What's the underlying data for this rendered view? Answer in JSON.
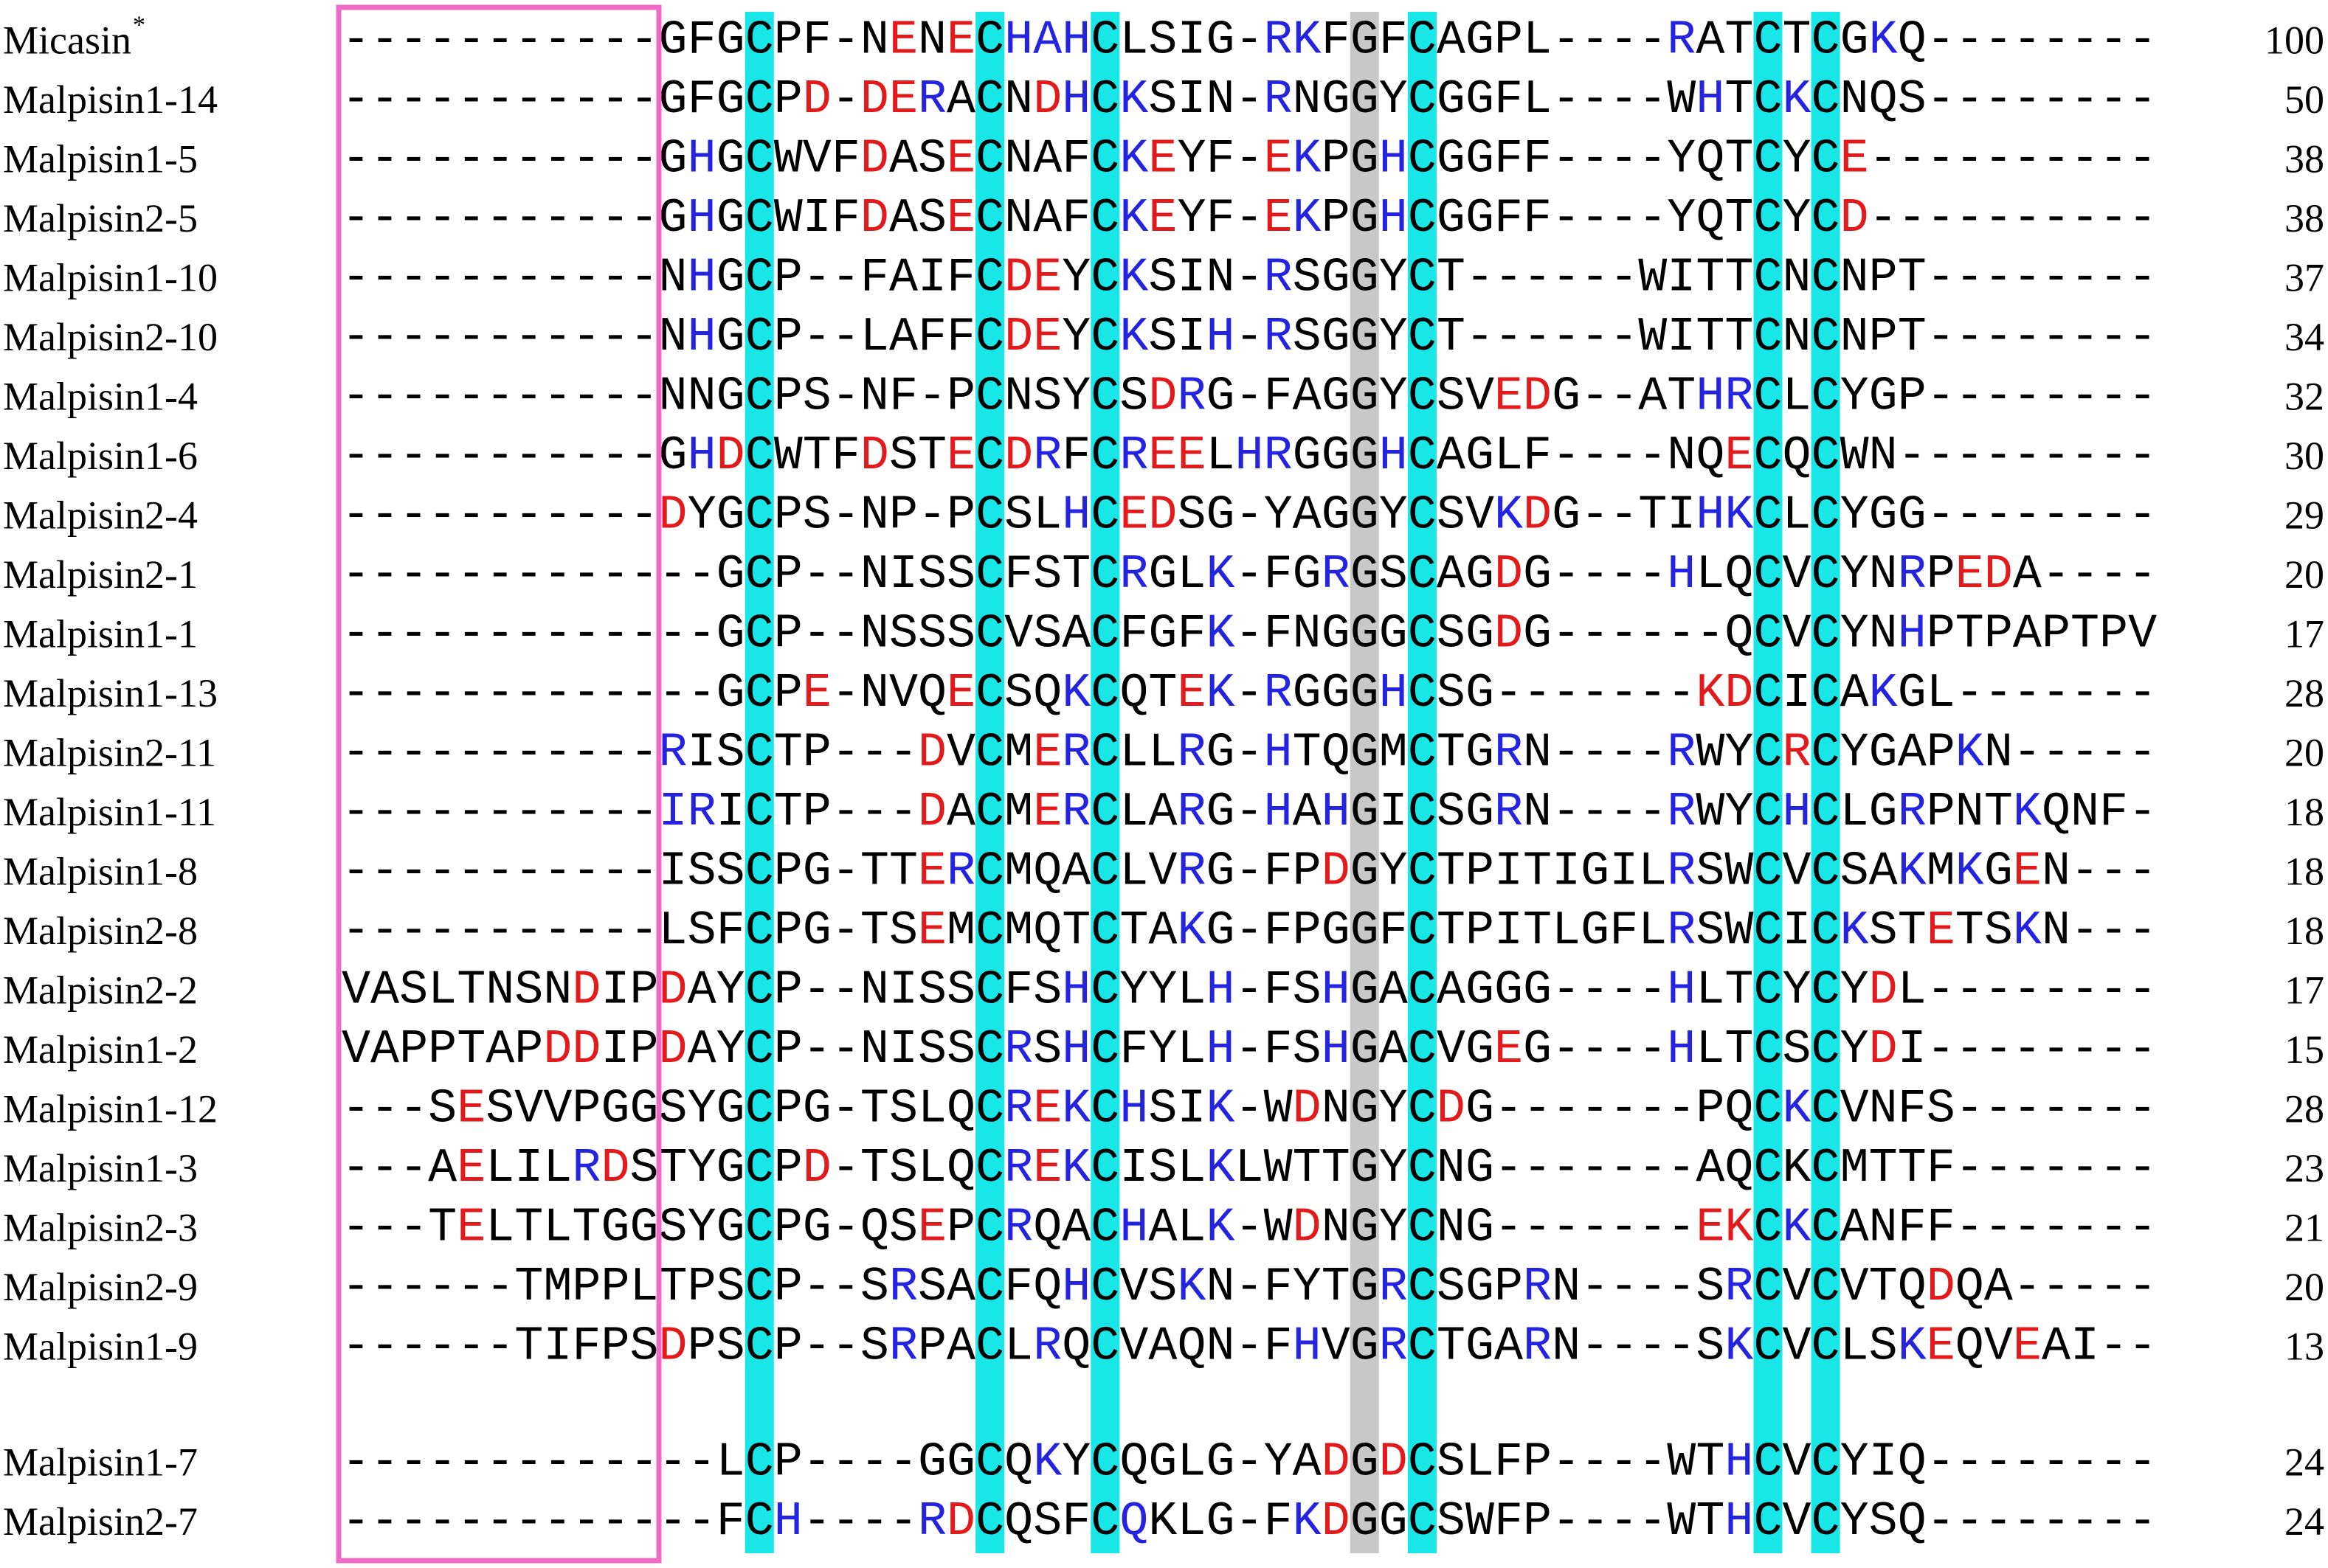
{
  "alignment": {
    "palette": {
      "red": "#e31a1c",
      "blue": "#2424e0"
    },
    "groups": [
      {
        "rows": [
          {
            "name": "Micasin",
            "note": "*",
            "box": "-----------",
            "sequence": "GFGCPF-NENECHAHCLSIG-RKFGFCAGPL----RATCTCGKQ--------",
            "length": 100,
            "red": [
              19,
              21
            ],
            "blue": [
              23,
              24,
              25,
              32,
              33,
              46,
              53
            ]
          },
          {
            "name": "Malpisin1-14",
            "box": "-----------",
            "sequence": "GFGCPD-DERACNDHCKSIN-RNGGYCGGFL----WHTCKCNQS--------",
            "length": 50,
            "red": [
              16,
              18,
              19,
              24
            ],
            "blue": [
              20,
              25,
              27,
              32,
              47,
              50
            ]
          },
          {
            "name": "Malpisin1-5",
            "box": "-----------",
            "sequence": "GHGCWVFDASECNAFCKEYF-EKPGHCGGFF----YQTCYCE----------",
            "length": 38,
            "red": [
              18,
              21,
              28,
              32,
              52
            ],
            "blue": [
              12,
              27,
              33,
              36
            ]
          },
          {
            "name": "Malpisin2-5",
            "box": "-----------",
            "sequence": "GHGCWIFDASECNAFCKEYF-EKPGHCGGFF----YQTCYCD----------",
            "length": 38,
            "red": [
              18,
              21,
              28,
              32,
              52
            ],
            "blue": [
              12,
              27,
              33,
              36
            ]
          },
          {
            "name": "Malpisin1-10",
            "box": "-----------",
            "sequence": "NHGCP--FAIFCDEYCKSIN-RSGGYCT------WITTCNCNPT--------",
            "length": 37,
            "red": [
              23,
              24
            ],
            "blue": [
              12,
              27,
              32
            ]
          },
          {
            "name": "Malpisin2-10",
            "box": "-----------",
            "sequence": "NHGCP--LAFFCDEYCKSIH-RSGGYCT------WITTCNCNPT--------",
            "length": 34,
            "red": [
              23,
              24
            ],
            "blue": [
              12,
              27,
              30,
              32
            ]
          },
          {
            "name": "Malpisin1-4",
            "box": "-----------",
            "sequence": "NNGCPS-NF-PCNSYCSDRG-FAGGYCSVEDG--ATHRCLCYGP--------",
            "length": 32,
            "red": [
              28,
              40,
              41
            ],
            "blue": [
              29,
              47,
              48
            ]
          },
          {
            "name": "Malpisin1-6",
            "box": "-----------",
            "sequence": "GHDCWTFDSTECDRFCREELHRGGGHCAGLF----NQECQCWN---------",
            "length": 30,
            "red": [
              13,
              18,
              21,
              23,
              28,
              29,
              48
            ],
            "blue": [
              12,
              24,
              27,
              31,
              32,
              36
            ]
          },
          {
            "name": "Malpisin2-4",
            "box": "-----------",
            "sequence": "DYGCPS-NP-PCSLHCEDSG-YAGGYCSVKDG--TIHKCLCYGG--------",
            "length": 29,
            "red": [
              11,
              27,
              28,
              41
            ],
            "blue": [
              25,
              40,
              47,
              48
            ]
          },
          {
            "name": "Malpisin2-1",
            "box": "-----------",
            "sequence": "--GCP--NISSCFSTCRGLK-FGRGSCAGDG----HLQCVCYNRPEDA----",
            "length": 20,
            "red": [
              40,
              56,
              57
            ],
            "blue": [
              27,
              30,
              34,
              46,
              54
            ]
          },
          {
            "name": "Malpisin1-1",
            "box": "-----------",
            "sequence": "--GCP--NSSSCVSACFGFK-FNGGGCSGDG------QCVCYNHPTPAPTPV",
            "length": 17,
            "red": [
              40
            ],
            "blue": [
              30,
              54
            ]
          },
          {
            "name": "Malpisin1-13",
            "box": "-----------",
            "sequence": "--GCPE-NVQECSQKCQTEK-RGGGHCSG-------KDCICAKGL-------",
            "length": 28,
            "red": [
              16,
              21,
              29,
              47,
              48
            ],
            "blue": [
              25,
              30,
              32,
              36,
              53
            ]
          },
          {
            "name": "Malpisin2-11",
            "box": "-----------",
            "sequence": "RISCTP---DVCMERCLLRG-HTQGMCTGRN----RWYCRCYGAPKN-----",
            "length": 20,
            "red": [
              20,
              24,
              50
            ],
            "blue": [
              11,
              25,
              29,
              32,
              40,
              46,
              56
            ]
          },
          {
            "name": "Malpisin1-11",
            "box": "-----------",
            "sequence": "IRICTP---DACMERCLARG-HAHGICSGRN----RWYCHCLGRPNTKQNF-",
            "length": 18,
            "red": [
              20,
              24
            ],
            "blue": [
              11,
              12,
              25,
              29,
              32,
              34,
              40,
              46,
              50,
              54,
              58
            ]
          },
          {
            "name": "Malpisin1-8",
            "box": "-----------",
            "sequence": "ISSCPG-TTERCMQACLVRG-FPDGYCTPITIGILRSWCVCSAKMKGEN---",
            "length": 18,
            "red": [
              20,
              34,
              58
            ],
            "blue": [
              21,
              29,
              46,
              54,
              56
            ]
          },
          {
            "name": "Malpisin2-8",
            "box": "-----------",
            "sequence": "LSFCPG-TSEMCMQTCTAKG-FPGGFCTPITLGFLRSWCICKSTETSKN---",
            "length": 18,
            "red": [
              20,
              55
            ],
            "blue": [
              29,
              46,
              52,
              58
            ]
          },
          {
            "name": "Malpisin2-2",
            "box": "VASLTNSNDIP",
            "sequence": "DAYCP--NISSCFSHCYYLH-FSHGACAGGG----HLTCYCYDL--------",
            "length": 17,
            "red": [
              8,
              11,
              53
            ],
            "blue": [
              25,
              30,
              34,
              46
            ]
          },
          {
            "name": "Malpisin1-2",
            "box": "VAPPTAPDDIP",
            "sequence": "DAYCP--NISSCRSHCFYLH-FSHGACVGEG----HLTCSCYDI--------",
            "length": 15,
            "red": [
              7,
              8,
              11,
              40,
              53
            ],
            "blue": [
              23,
              25,
              30,
              34,
              46
            ]
          },
          {
            "name": "Malpisin1-12",
            "box": "---SESVVPGG",
            "sequence": "SYGCPG-TSLQCREKCHSIK-WDNGYCDG-------PQCKCVNFS-------",
            "length": 28,
            "red": [
              4,
              24,
              33,
              38
            ],
            "blue": [
              23,
              25,
              27,
              30,
              50
            ]
          },
          {
            "name": "Malpisin1-3",
            "box": "---AELILRDS",
            "sequence": "TYGCPD-TSLQCREKCISLKLWTTGYCNG-------AQCKCMTTF-------",
            "length": 23,
            "red": [
              4,
              9,
              16,
              24
            ],
            "blue": [
              8,
              23,
              25,
              30
            ]
          },
          {
            "name": "Malpisin2-3",
            "box": "---TELTLTGG",
            "sequence": "SYGCPG-QSEPCRQACHALK-WDNGYCNG-------EKCKCANFF-------",
            "length": 21,
            "red": [
              4,
              20,
              33,
              47,
              48
            ],
            "blue": [
              23,
              27,
              30,
              50
            ]
          },
          {
            "name": "Malpisin2-9",
            "box": "------TMPPL",
            "sequence": "TPSCP--SRSACFQHCVSKN-FYTGRCSGPRN----SRCVCVTQDQA-----",
            "length": 20,
            "red": [
              55
            ],
            "blue": [
              19,
              25,
              29,
              36,
              41,
              48
            ]
          },
          {
            "name": "Malpisin1-9",
            "box": "------TIFPS",
            "sequence": "DPSCP--SRPACLRQCVAQN-FHVGRCTGARN----SKCVCLSKEQVEAI--",
            "length": 13,
            "red": [
              11,
              55,
              58
            ],
            "blue": [
              19,
              24,
              33,
              36,
              41,
              48,
              54
            ]
          }
        ]
      },
      {
        "rows": [
          {
            "name": "Malpisin1-7",
            "box": "-----------",
            "sequence": "--LCP----GGCQKYCQGLG-YADGDCSLFP----WTHCVCYIQ--------",
            "length": 24,
            "red": [
              34,
              36
            ],
            "blue": [
              24,
              48
            ]
          },
          {
            "name": "Malpisin2-7",
            "box": "-----------",
            "sequence": "--FCH----RDCQSFCQKLG-FKDGGCSWFP----WTHCVCYSQ--------",
            "length": 24,
            "red": [
              21,
              34
            ],
            "blue": [
              15,
              20,
              27,
              33,
              48
            ]
          }
        ]
      }
    ]
  }
}
